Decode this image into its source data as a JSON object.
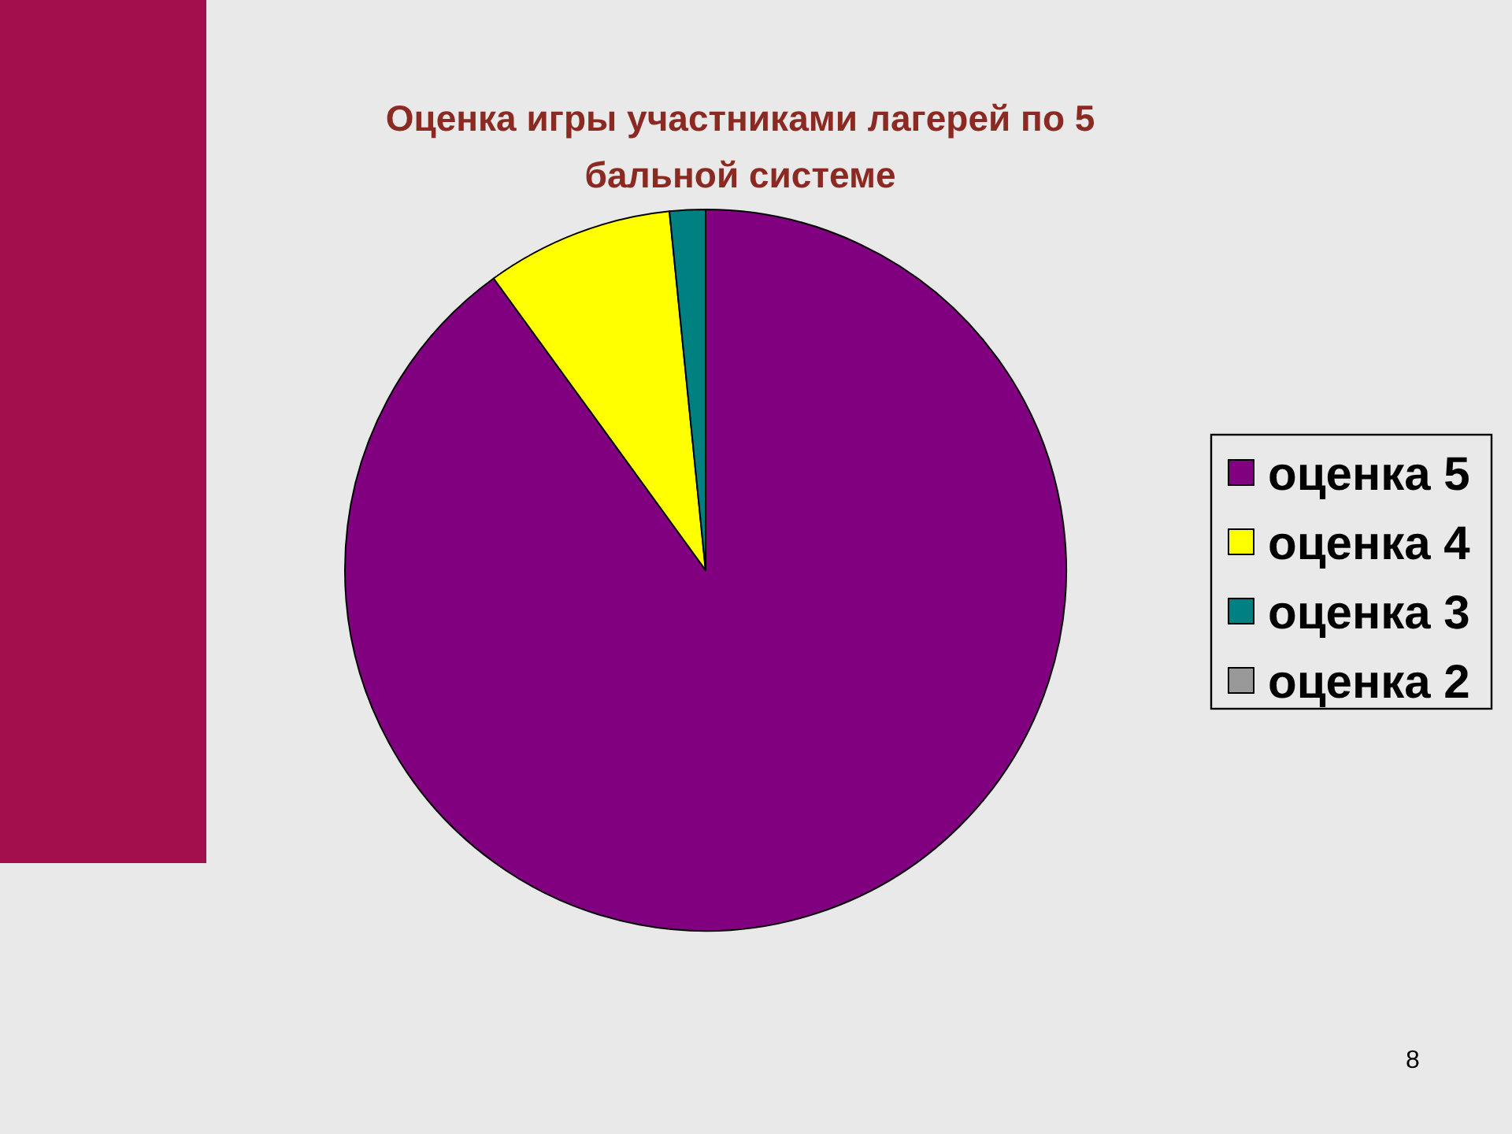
{
  "chart_data": {
    "type": "pie",
    "title": "Оценка игры участниками лагерей по 5 бальной системе",
    "categories": [
      "оценка 5",
      "оценка 4",
      "оценка 3",
      "оценка 2"
    ],
    "values": [
      90,
      8.4,
      1.6,
      0
    ],
    "colors": [
      "#800080",
      "#ffff00",
      "#008080",
      "#999999"
    ],
    "legend": "right",
    "annotations": [
      "8"
    ]
  }
}
